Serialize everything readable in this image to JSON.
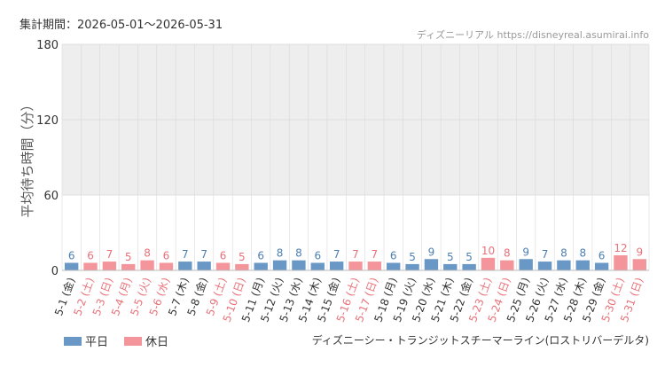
{
  "header": {
    "period": "集計期間：2026-05-01～2026-05-31",
    "source": "ディズニーリアル https://disneyreal.asumirai.info"
  },
  "footer": {
    "attraction": "ディズニーシー・トランジットスチーマーライン(ロストリバーデルタ)"
  },
  "colors": {
    "weekday": "#6a98c6",
    "holiday": "#f3959a",
    "weekday_label": "#4d7fb3",
    "holiday_label": "#e8727a",
    "band": "#eeeeee",
    "grid": "#d9d9d9",
    "axis_text": "#333333"
  },
  "chart_data": {
    "type": "bar",
    "ylabel": "平均待ち時間（分）",
    "ylim": [
      0,
      180
    ],
    "yticks": [
      0,
      60,
      120,
      180
    ],
    "shaded_band": [
      60,
      180
    ],
    "legend_position": "bottom-left",
    "legend": [
      {
        "label": "平日",
        "key": "weekday"
      },
      {
        "label": "休日",
        "key": "holiday"
      }
    ],
    "categories": [
      "5-1 (金)",
      "5-2 (土)",
      "5-3 (日)",
      "5-4 (月)",
      "5-5 (火)",
      "5-6 (水)",
      "5-7 (木)",
      "5-8 (金)",
      "5-9 (土)",
      "5-10 (日)",
      "5-11 (月)",
      "5-12 (火)",
      "5-13 (水)",
      "5-14 (木)",
      "5-15 (金)",
      "5-16 (土)",
      "5-17 (日)",
      "5-18 (月)",
      "5-19 (火)",
      "5-20 (水)",
      "5-21 (木)",
      "5-22 (金)",
      "5-23 (土)",
      "5-24 (日)",
      "5-25 (月)",
      "5-26 (火)",
      "5-27 (水)",
      "5-28 (木)",
      "5-29 (金)",
      "5-30 (土)",
      "5-31 (日)"
    ],
    "values": [
      6,
      6,
      7,
      5,
      8,
      6,
      7,
      7,
      6,
      5,
      6,
      8,
      8,
      6,
      7,
      7,
      7,
      6,
      5,
      9,
      5,
      5,
      10,
      8,
      9,
      7,
      8,
      8,
      6,
      12,
      9
    ],
    "holiday": [
      false,
      true,
      true,
      true,
      true,
      true,
      false,
      false,
      true,
      true,
      false,
      false,
      false,
      false,
      false,
      true,
      true,
      false,
      false,
      false,
      false,
      false,
      true,
      true,
      false,
      false,
      false,
      false,
      false,
      true,
      true
    ]
  }
}
